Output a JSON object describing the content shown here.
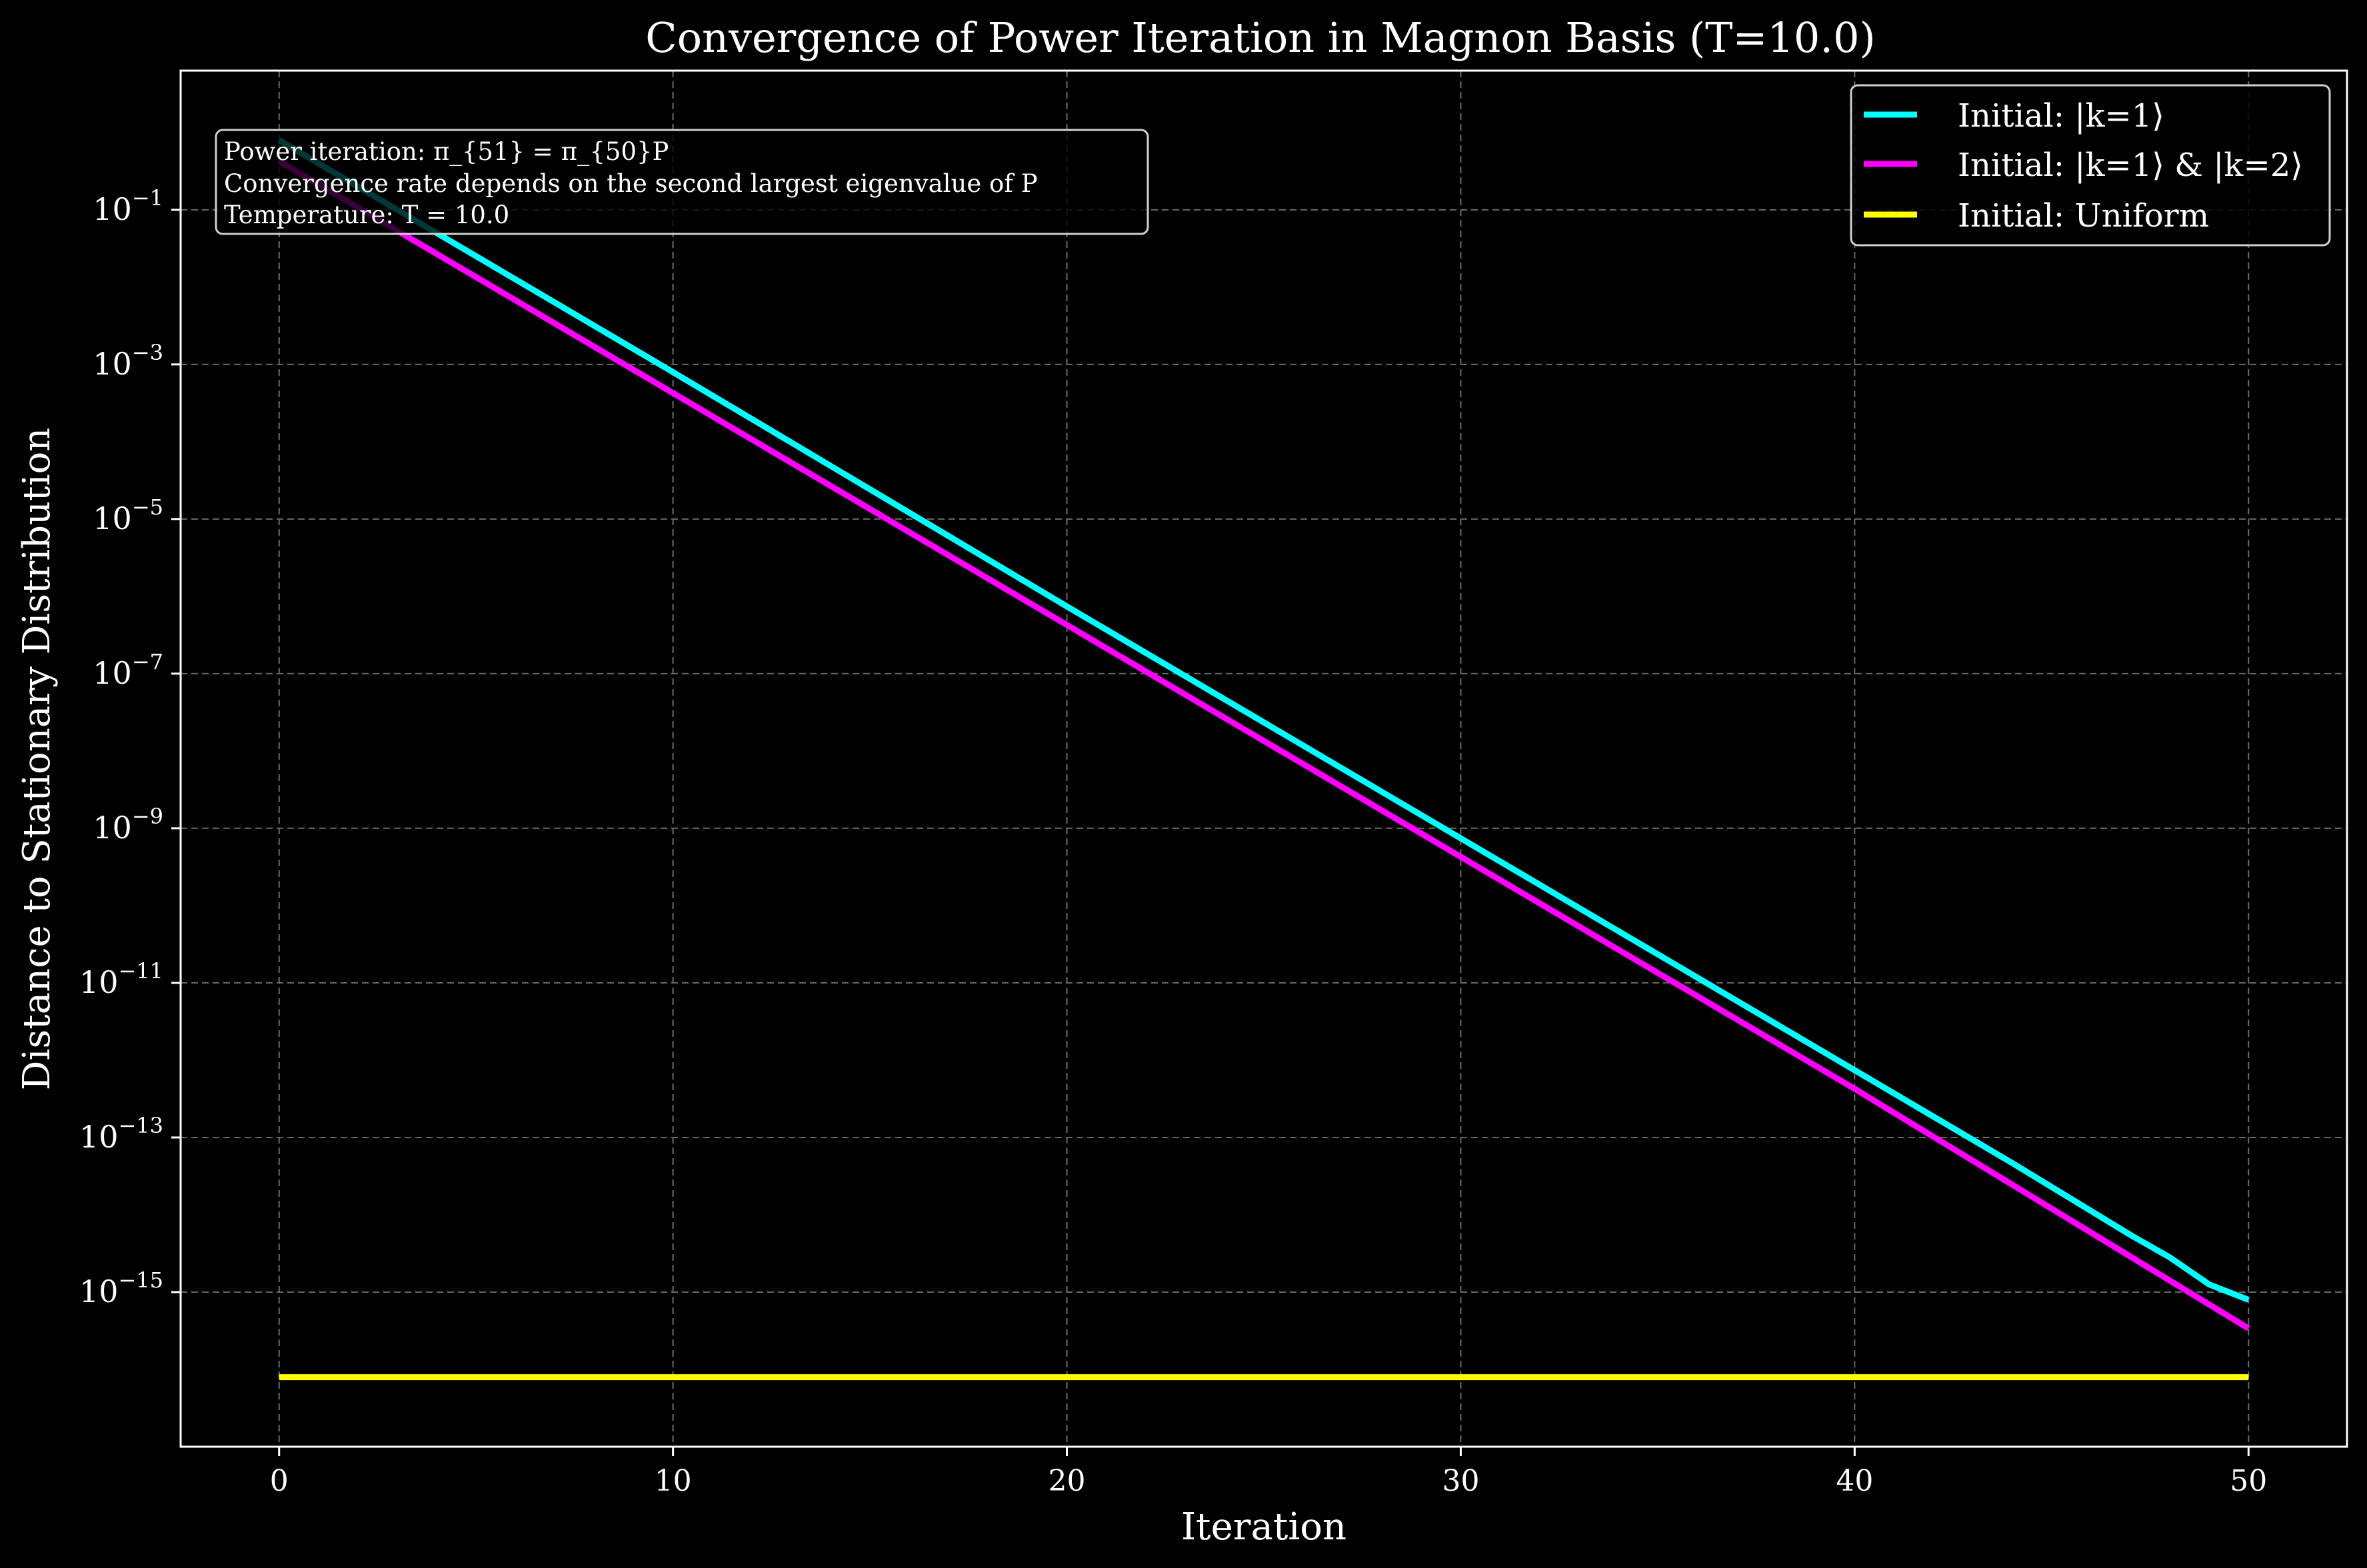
{
  "chart_data": {
    "type": "line",
    "title": "Convergence of Power Iteration in Magnon Basis (T=10.0)",
    "xlabel": "Iteration",
    "ylabel": "Distance to Stationary Distribution",
    "yscale": "log",
    "xlim": [
      -2.5,
      52.5
    ],
    "ylim_log10": [
      -17.0,
      0.8
    ],
    "x_ticks": [
      0,
      10,
      20,
      30,
      40,
      50
    ],
    "y_tick_exponents": [
      -1,
      -3,
      -5,
      -7,
      -9,
      -11,
      -13,
      -15
    ],
    "grid": true,
    "legend_position": "top-right",
    "annotation": [
      "Power iteration: π_{51} = π_{50}P",
      "Convergence rate depends on the second largest eigenvalue of P",
      "Temperature: T = 10.0"
    ],
    "series": [
      {
        "name": "Initial: |k=1⟩",
        "color": "#00ffff",
        "x": [
          0,
          10,
          20,
          30,
          40,
          44,
          47,
          48,
          49,
          50
        ],
        "log10_y": [
          -0.1,
          -3.1,
          -6.13,
          -9.13,
          -12.13,
          -13.33,
          -14.26,
          -14.55,
          -14.9,
          -15.1
        ]
      },
      {
        "name": "Initial: |k=1⟩ & |k=2⟩",
        "color": "#ff00ff",
        "x": [
          0,
          10,
          20,
          30,
          40,
          50
        ],
        "log10_y": [
          -0.37,
          -3.37,
          -6.37,
          -9.37,
          -12.37,
          -15.47
        ]
      },
      {
        "name": "Initial: Uniform",
        "color": "#ffff00",
        "x": [
          0,
          50
        ],
        "log10_y": [
          -16.1,
          -16.1
        ]
      }
    ]
  }
}
